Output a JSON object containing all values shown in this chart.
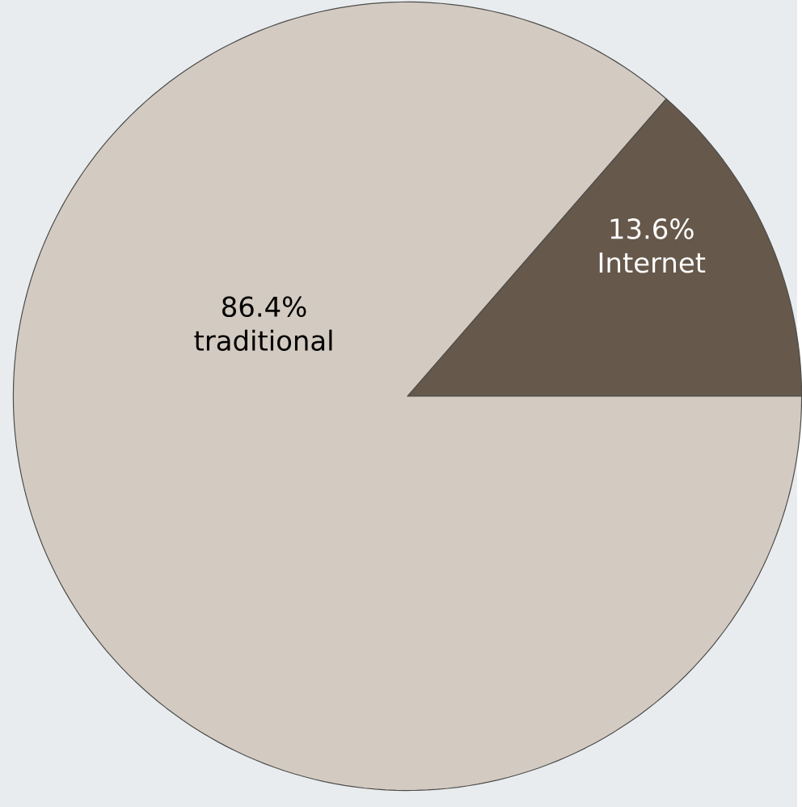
{
  "chart_data": {
    "type": "pie",
    "categories": [
      "Internet",
      "traditional"
    ],
    "values": [
      13.6,
      86.4
    ],
    "value_labels": [
      "13.6%",
      "86.4%"
    ],
    "colors": [
      "#66584a",
      "#d3cbc1"
    ]
  }
}
